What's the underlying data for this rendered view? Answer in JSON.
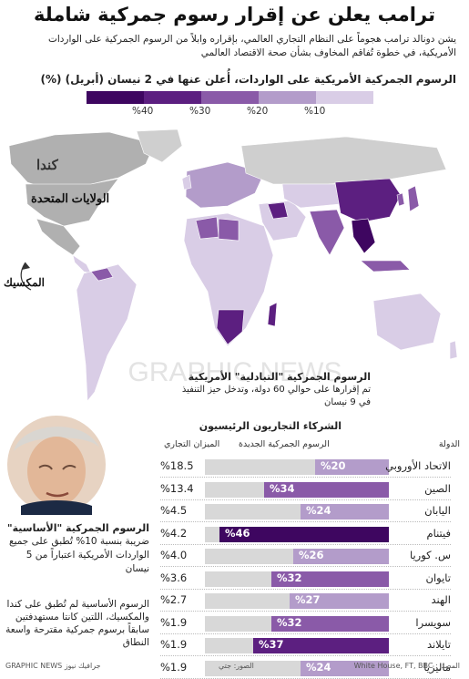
{
  "title": "ترامب يعلن عن إقرار رسوم جمركية شاملة",
  "subtitle": "يشن دونالد ترامب هجوماً على النظام التجاري العالمي، بإقراره وابلاً من الرسوم الجمركية على الواردات الأمريكية، في خطوة تُفاقم المخاوف بشأن صحة الاقتصاد العالمي",
  "map": {
    "heading": "الرسوم الجمركية الأمريكية على الواردات، أُعلن عنها في 2 نيسان (أبريل) (%)",
    "legend": [
      "%10",
      "%20",
      "%30",
      "%40"
    ],
    "colors": {
      "t10": "#d9cde6",
      "t20": "#b39cca",
      "t30": "#8a5aa8",
      "t40": "#5c1f80",
      "t50": "#3e0660",
      "land": "#cfcfcf",
      "us": "#b0b0b0"
    },
    "labels": {
      "canada": "كندا",
      "usa": "الولايات المتحدة",
      "mexico": "المكسيك"
    },
    "watermark": "GRAPHIC NEWS"
  },
  "reciprocal": {
    "heading": "الرسوم الجمركية \"التبادلية\" الأمريكية",
    "body": "تم إقرارها على حوالي 60 دولة، وتدخل حيز التنفيذ في 9 نيسان"
  },
  "baseline": {
    "heading": "الرسوم الجمركية \"الأساسية\"",
    "body": "ضريبة بنسبة 10% تُطبق على جميع الواردات الأمريكية اعتباراً من 5 نيسان"
  },
  "canmex": "الرسوم الأساسية لم تُطبق على كندا والمكسيك، اللتين كانتا مستهدفتين سابقاً برسوم جمركية مقترحة واسعة النطاق",
  "partners": {
    "heading": "الشركاء التجاريون الرئيسيون",
    "col_country": "الدولة",
    "col_tariff": "الرسوم الجمركية الجديدة",
    "col_balance": "الميزان التجاري"
  },
  "chart_data": {
    "type": "bar",
    "categories": [
      "الاتحاد الأوروبي",
      "الصين",
      "اليابان",
      "فيتنام",
      "س. كوريا",
      "تايوان",
      "الهند",
      "سويسرا",
      "تايلاند",
      "ماليزيا"
    ],
    "series": [
      {
        "values": [
          20,
          34,
          24,
          46,
          26,
          32,
          27,
          32,
          37,
          24
        ]
      },
      {
        "values": [
          18.5,
          13.4,
          4.5,
          4.2,
          4.0,
          3.6,
          2.7,
          1.9,
          1.9,
          1.9
        ]
      }
    ],
    "tariff_labels": [
      "%20",
      "%34",
      "%24",
      "%46",
      "%26",
      "%32",
      "%27",
      "%32",
      "%37",
      "%24"
    ],
    "balance_labels": [
      "%18.5",
      "%13.4",
      "%4.5",
      "%4.2",
      "%4.0",
      "%3.6",
      "%2.7",
      "%1.9",
      "%1.9",
      "%1.9"
    ],
    "ylim": [
      0,
      50
    ]
  },
  "footer": {
    "source": "المصدر: White House, FT, BBC",
    "photo": "الصور: جتي",
    "brand": "GRAPHIC NEWS جرافيك نيوز"
  }
}
